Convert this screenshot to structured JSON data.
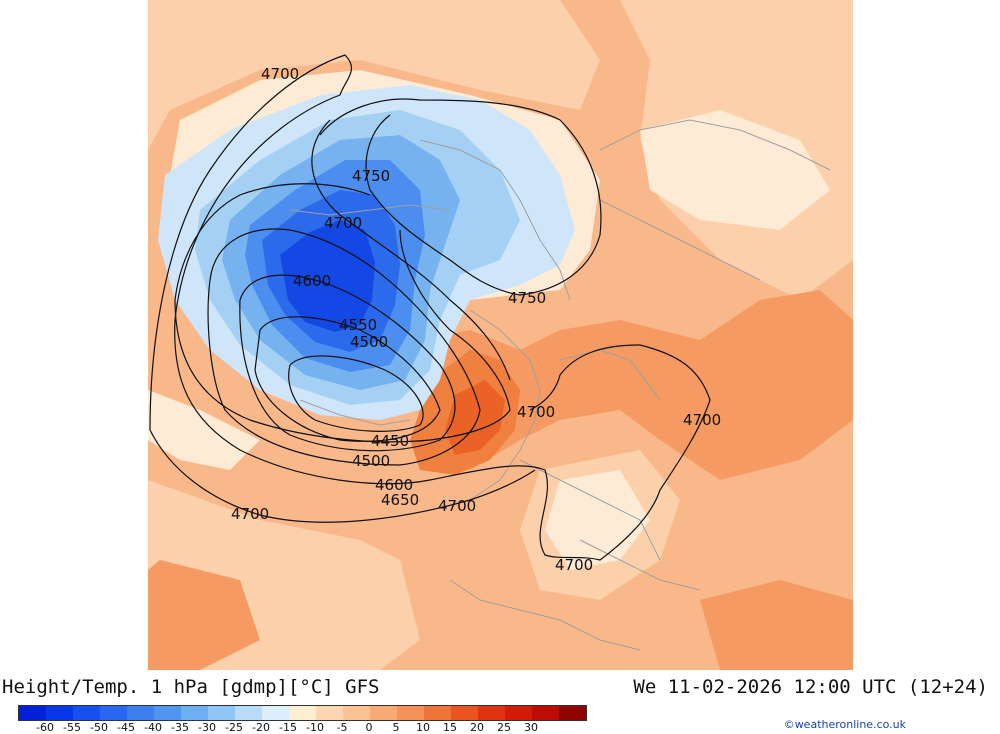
{
  "header": {
    "title_left": "Height/Temp. 1 hPa [gdmp][°C] GFS",
    "title_right": "We 11-02-2026 12:00 UTC (12+24)"
  },
  "credit": "©weatheronline.co.uk",
  "legend": {
    "colors": [
      "#0020d8",
      "#0838e8",
      "#1850f0",
      "#2868f0",
      "#3c80f0",
      "#5096f0",
      "#6eaef2",
      "#90c6f6",
      "#b8dcf8",
      "#daeefc",
      "#fdefd2",
      "#fcd6b0",
      "#fbc294",
      "#f8aa76",
      "#f59058",
      "#f0743a",
      "#ea5420",
      "#e03410",
      "#d01c08",
      "#bc0c04",
      "#900400"
    ],
    "tick_labels": [
      "-60",
      "-55",
      "-50",
      "-45",
      "-40",
      "-35",
      "-30",
      "-25",
      "-20",
      "-15",
      "-10",
      "-5",
      "0",
      "5",
      "10",
      "15",
      "20",
      "25",
      "30"
    ]
  },
  "map": {
    "contour_labels": [
      {
        "text": "4700"
      },
      {
        "text": "4750"
      },
      {
        "text": "4700"
      },
      {
        "text": "4600"
      },
      {
        "text": "4550"
      },
      {
        "text": "4500"
      },
      {
        "text": "4750"
      },
      {
        "text": "4700"
      },
      {
        "text": "4700"
      },
      {
        "text": "4450"
      },
      {
        "text": "4500"
      },
      {
        "text": "4600"
      },
      {
        "text": "4650"
      },
      {
        "text": "4700"
      },
      {
        "text": "4700"
      },
      {
        "text": "4700"
      }
    ]
  }
}
